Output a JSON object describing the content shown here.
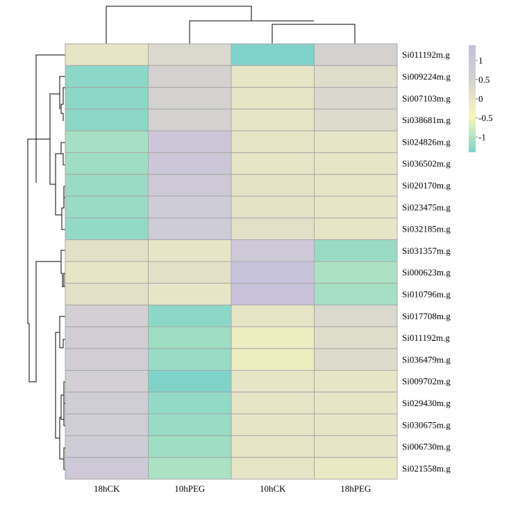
{
  "chart_data": {
    "type": "heatmap",
    "title": "",
    "xlabel": "",
    "ylabel": "",
    "columns": [
      "18hCK",
      "10hPEG",
      "10hCK",
      "18hPEG"
    ],
    "rows": [
      "Si011192m.g",
      "Si009224m.g",
      "Si007103m.g",
      "Si038681m.g",
      "Si024826m.g",
      "Si036502m.g",
      "Si020170m.g",
      "Si023475m.g",
      "Si032185m.g",
      "Si031357m.g",
      "Si000623m.g",
      "Si010796m.g",
      "Si017708m.g",
      "Si011192m.g",
      "Si036479m.g",
      "Si009702m.g",
      "Si029430m.g",
      "Si030675m.g",
      "Si006730m.g",
      "Si021558m.g"
    ],
    "values": [
      [
        0.0,
        0.3,
        -1.4,
        0.5
      ],
      [
        -1.3,
        0.5,
        0.0,
        0.2
      ],
      [
        -1.3,
        0.5,
        0.0,
        0.35
      ],
      [
        -1.3,
        0.5,
        0.0,
        0.25
      ],
      [
        -1.1,
        1.0,
        0.0,
        0.0
      ],
      [
        -1.15,
        1.0,
        0.0,
        0.0
      ],
      [
        -1.2,
        0.9,
        0.05,
        0.0
      ],
      [
        -1.2,
        0.8,
        0.05,
        0.0
      ],
      [
        -1.25,
        0.8,
        0.1,
        0.0
      ],
      [
        0.1,
        0.0,
        0.9,
        -1.2
      ],
      [
        0.0,
        0.1,
        1.2,
        -1.05
      ],
      [
        0.1,
        0.0,
        1.25,
        -1.1
      ],
      [
        0.6,
        -1.3,
        0.0,
        0.3
      ],
      [
        0.7,
        -1.15,
        -0.2,
        0.2
      ],
      [
        0.7,
        -1.2,
        -0.2,
        0.25
      ],
      [
        0.6,
        -1.4,
        0.0,
        0.0
      ],
      [
        0.75,
        -1.25,
        0.0,
        0.0
      ],
      [
        0.75,
        -1.2,
        0.0,
        0.0
      ],
      [
        0.8,
        -1.15,
        0.0,
        0.0
      ],
      [
        0.9,
        -1.05,
        0.0,
        -0.1
      ]
    ],
    "color_scale": {
      "min": -1.4,
      "max": 1.4,
      "stops": [
        "#7fd3c8",
        "#f7f7bb",
        "#d4d3d1",
        "#c4bede"
      ],
      "ticks": [
        1,
        0.5,
        0,
        -0.5,
        -1
      ],
      "tick_labels": [
        "1",
        "0.5",
        "0",
        "-0.5",
        "-1"
      ]
    },
    "legend_position": "top-right",
    "cell_border_color": "#a8a8a8",
    "dendrogram_color": "#000000",
    "grid": false
  }
}
